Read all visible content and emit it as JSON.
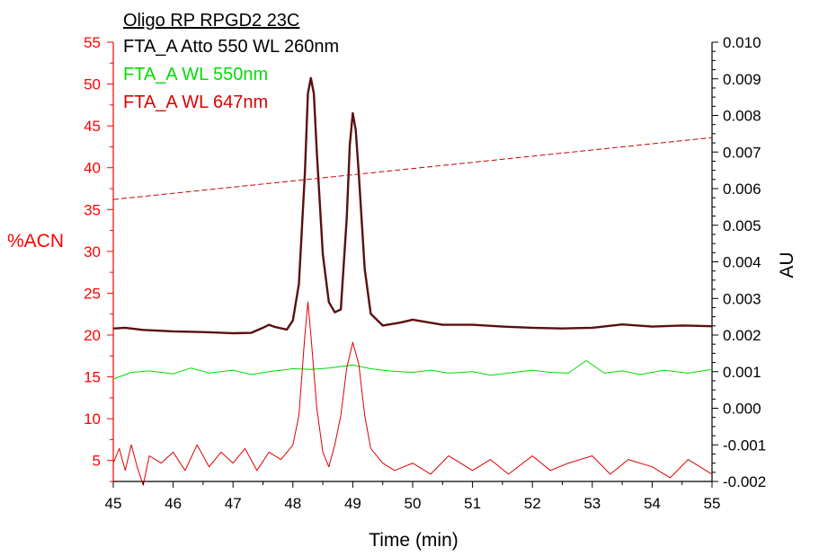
{
  "chart_data": {
    "type": "line",
    "title": "Oligo RP RPGD2 23C",
    "xlabel": "Time (min)",
    "ylabel_left": "%ACN",
    "ylabel_right": "AU",
    "xlim": [
      45,
      55
    ],
    "ylim_left": [
      2.5,
      55
    ],
    "ylim_right": [
      -0.002,
      0.01
    ],
    "xticks": [
      "45",
      "46",
      "47",
      "48",
      "49",
      "50",
      "51",
      "52",
      "53",
      "54",
      "55"
    ],
    "yticks_left": [
      "5",
      "10",
      "15",
      "20",
      "25",
      "30",
      "35",
      "40",
      "45",
      "50",
      "55"
    ],
    "yticks_right": [
      "-0.002",
      "-0.001",
      "0.000",
      "0.001",
      "0.002",
      "0.003",
      "0.004",
      "0.005",
      "0.006",
      "0.007",
      "0.008",
      "0.009",
      "0.010"
    ],
    "grid": false,
    "legend_position": "top-left",
    "colors": {
      "left_axis": "#ff0000",
      "right_axis": "#000000",
      "series_260": "#5a0f0f",
      "series_550": "#00dd00",
      "series_647": "#dd0000",
      "gradient": "#cc0000"
    },
    "series": [
      {
        "name": "FTA_A Atto 550 WL 260nm",
        "axis": "right",
        "x": [
          45.0,
          45.2,
          45.5,
          46.0,
          46.5,
          47.0,
          47.3,
          47.5,
          47.6,
          47.7,
          47.9,
          48.0,
          48.1,
          48.2,
          48.25,
          48.3,
          48.35,
          48.4,
          48.5,
          48.6,
          48.7,
          48.8,
          48.9,
          48.95,
          49.0,
          49.05,
          49.1,
          49.2,
          49.3,
          49.5,
          49.8,
          50.0,
          50.5,
          51.0,
          51.5,
          52.0,
          52.5,
          53.0,
          53.5,
          54.0,
          54.5,
          55.0
        ],
        "y": [
          0.00218,
          0.0022,
          0.00214,
          0.0021,
          0.00208,
          0.00205,
          0.00206,
          0.0022,
          0.00228,
          0.00222,
          0.00215,
          0.0024,
          0.0034,
          0.0064,
          0.0086,
          0.00902,
          0.0086,
          0.007,
          0.0042,
          0.0029,
          0.00262,
          0.0027,
          0.0052,
          0.0072,
          0.00806,
          0.0076,
          0.0064,
          0.0038,
          0.00258,
          0.00226,
          0.00234,
          0.00242,
          0.00228,
          0.00228,
          0.00223,
          0.0022,
          0.00218,
          0.0022,
          0.00229,
          0.00223,
          0.00226,
          0.00224
        ]
      },
      {
        "name": "FTA_A WL 550nm",
        "axis": "right",
        "x": [
          45.0,
          45.3,
          45.6,
          46.0,
          46.3,
          46.6,
          47.0,
          47.3,
          47.6,
          48.0,
          48.3,
          48.6,
          49.0,
          49.3,
          49.6,
          50.0,
          50.3,
          50.6,
          51.0,
          51.3,
          51.6,
          52.0,
          52.3,
          52.6,
          52.9,
          53.2,
          53.5,
          53.8,
          54.2,
          54.6,
          55.0
        ],
        "y": [
          0.0008,
          0.00098,
          0.00102,
          0.00094,
          0.0011,
          0.00096,
          0.00104,
          0.00092,
          0.001,
          0.00108,
          0.00106,
          0.0011,
          0.00118,
          0.00108,
          0.00102,
          0.00098,
          0.00104,
          0.00096,
          0.001,
          0.0009,
          0.00096,
          0.00104,
          0.00098,
          0.00096,
          0.0013,
          0.00096,
          0.00102,
          0.00092,
          0.00104,
          0.00096,
          0.00106
        ]
      },
      {
        "name": "FTA_A WL 647nm",
        "axis": "right",
        "x": [
          45.0,
          45.1,
          45.2,
          45.3,
          45.4,
          45.5,
          45.6,
          45.8,
          46.0,
          46.2,
          46.4,
          46.6,
          46.8,
          47.0,
          47.2,
          47.4,
          47.6,
          47.8,
          48.0,
          48.1,
          48.2,
          48.25,
          48.3,
          48.4,
          48.5,
          48.6,
          48.7,
          48.8,
          48.9,
          49.0,
          49.1,
          49.2,
          49.3,
          49.5,
          49.7,
          50.0,
          50.3,
          50.6,
          51.0,
          51.3,
          51.6,
          52.0,
          52.3,
          52.6,
          53.0,
          53.3,
          53.6,
          54.0,
          54.3,
          54.6,
          55.0
        ],
        "y": [
          -0.0015,
          -0.0011,
          -0.0017,
          -0.001,
          -0.0016,
          -0.0021,
          -0.0013,
          -0.0015,
          -0.0012,
          -0.0017,
          -0.001,
          -0.0016,
          -0.0012,
          -0.0015,
          -0.0011,
          -0.0017,
          -0.0012,
          -0.0014,
          -0.001,
          -0.0002,
          0.002,
          0.0029,
          0.002,
          0.0,
          -0.0012,
          -0.0016,
          -0.001,
          -0.0002,
          0.0011,
          0.0018,
          0.0012,
          -0.0002,
          -0.0011,
          -0.0015,
          -0.0017,
          -0.0015,
          -0.0018,
          -0.0013,
          -0.0017,
          -0.0014,
          -0.0018,
          -0.0013,
          -0.0017,
          -0.0015,
          -0.0013,
          -0.0018,
          -0.0014,
          -0.0016,
          -0.0019,
          -0.0014,
          -0.0018
        ]
      },
      {
        "axis": "left",
        "style": "dashed",
        "x": [
          45,
          55
        ],
        "y": [
          36.2,
          43.6
        ]
      }
    ]
  }
}
